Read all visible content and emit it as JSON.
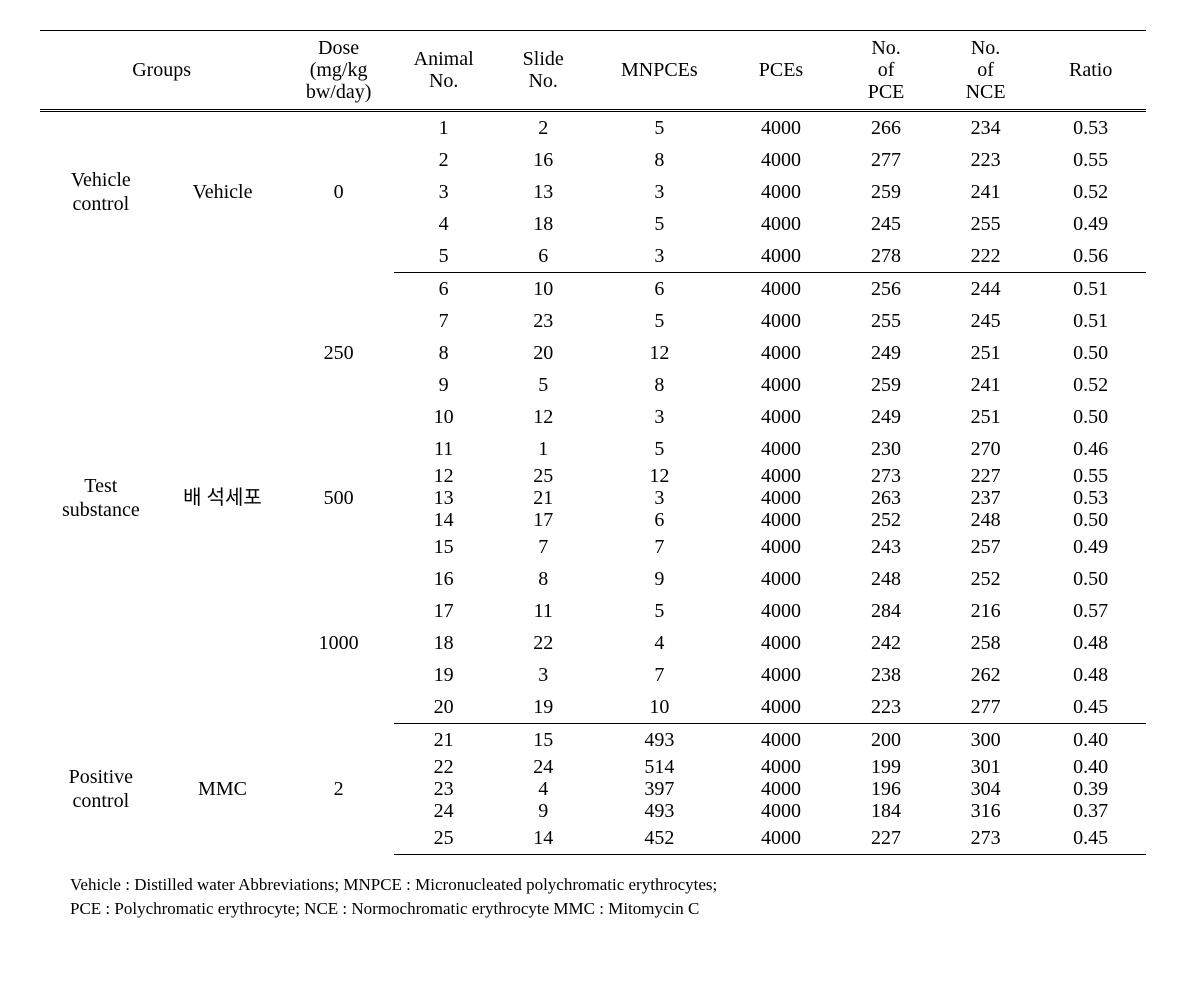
{
  "table": {
    "columns": {
      "groups": "Groups",
      "dose": "Dose\n(mg/kg\nbw/day)",
      "animal_no": "Animal\nNo.",
      "slide_no": "Slide\nNo.",
      "mnpces": "MNPCEs",
      "pces": "PCEs",
      "no_pce": "No.\nof\nPCE",
      "no_nce": "No.\nof\nNCE",
      "ratio": "Ratio"
    },
    "groups": [
      {
        "label": "Vehicle\ncontrol",
        "substance": "Vehicle",
        "doses": [
          {
            "dose": "0",
            "rows": [
              {
                "animal": "1",
                "slide": "2",
                "mnpces": "5",
                "pces": "4000",
                "no_pce": "266",
                "no_nce": "234",
                "ratio": "0.53"
              },
              {
                "animal": "2",
                "slide": "16",
                "mnpces": "8",
                "pces": "4000",
                "no_pce": "277",
                "no_nce": "223",
                "ratio": "0.55"
              },
              {
                "animal": "3",
                "slide": "13",
                "mnpces": "3",
                "pces": "4000",
                "no_pce": "259",
                "no_nce": "241",
                "ratio": "0.52"
              },
              {
                "animal": "4",
                "slide": "18",
                "mnpces": "5",
                "pces": "4000",
                "no_pce": "245",
                "no_nce": "255",
                "ratio": "0.49"
              },
              {
                "animal": "5",
                "slide": "6",
                "mnpces": "3",
                "pces": "4000",
                "no_pce": "278",
                "no_nce": "222",
                "ratio": "0.56"
              }
            ]
          }
        ]
      },
      {
        "label": "Test\nsubstance",
        "substance": "배 석세포",
        "doses": [
          {
            "dose": "250",
            "rows": [
              {
                "animal": "6",
                "slide": "10",
                "mnpces": "6",
                "pces": "4000",
                "no_pce": "256",
                "no_nce": "244",
                "ratio": "0.51"
              },
              {
                "animal": "7",
                "slide": "23",
                "mnpces": "5",
                "pces": "4000",
                "no_pce": "255",
                "no_nce": "245",
                "ratio": "0.51"
              },
              {
                "animal": "8",
                "slide": "20",
                "mnpces": "12",
                "pces": "4000",
                "no_pce": "249",
                "no_nce": "251",
                "ratio": "0.50"
              },
              {
                "animal": "9",
                "slide": "5",
                "mnpces": "8",
                "pces": "4000",
                "no_pce": "259",
                "no_nce": "241",
                "ratio": "0.52"
              },
              {
                "animal": "10",
                "slide": "12",
                "mnpces": "3",
                "pces": "4000",
                "no_pce": "249",
                "no_nce": "251",
                "ratio": "0.50"
              }
            ]
          },
          {
            "dose": "500",
            "rows": [
              {
                "animal": "11",
                "slide": "1",
                "mnpces": "5",
                "pces": "4000",
                "no_pce": "230",
                "no_nce": "270",
                "ratio": "0.46"
              },
              {
                "animal": "12",
                "slide": "25",
                "mnpces": "12",
                "pces": "4000",
                "no_pce": "273",
                "no_nce": "227",
                "ratio": "0.55",
                "compact": true
              },
              {
                "animal": "13",
                "slide": "21",
                "mnpces": "3",
                "pces": "4000",
                "no_pce": "263",
                "no_nce": "237",
                "ratio": "0.53",
                "compact": true
              },
              {
                "animal": "14",
                "slide": "17",
                "mnpces": "6",
                "pces": "4000",
                "no_pce": "252",
                "no_nce": "248",
                "ratio": "0.50",
                "compact": true
              },
              {
                "animal": "15",
                "slide": "7",
                "mnpces": "7",
                "pces": "4000",
                "no_pce": "243",
                "no_nce": "257",
                "ratio": "0.49"
              }
            ]
          },
          {
            "dose": "1000",
            "rows": [
              {
                "animal": "16",
                "slide": "8",
                "mnpces": "9",
                "pces": "4000",
                "no_pce": "248",
                "no_nce": "252",
                "ratio": "0.50"
              },
              {
                "animal": "17",
                "slide": "11",
                "mnpces": "5",
                "pces": "4000",
                "no_pce": "284",
                "no_nce": "216",
                "ratio": "0.57"
              },
              {
                "animal": "18",
                "slide": "22",
                "mnpces": "4",
                "pces": "4000",
                "no_pce": "242",
                "no_nce": "258",
                "ratio": "0.48"
              },
              {
                "animal": "19",
                "slide": "3",
                "mnpces": "7",
                "pces": "4000",
                "no_pce": "238",
                "no_nce": "262",
                "ratio": "0.48"
              },
              {
                "animal": "20",
                "slide": "19",
                "mnpces": "10",
                "pces": "4000",
                "no_pce": "223",
                "no_nce": "277",
                "ratio": "0.45"
              }
            ]
          }
        ]
      },
      {
        "label": "Positive\ncontrol",
        "substance": "MMC",
        "doses": [
          {
            "dose": "2",
            "rows": [
              {
                "animal": "21",
                "slide": "15",
                "mnpces": "493",
                "pces": "4000",
                "no_pce": "200",
                "no_nce": "300",
                "ratio": "0.40"
              },
              {
                "animal": "22",
                "slide": "24",
                "mnpces": "514",
                "pces": "4000",
                "no_pce": "199",
                "no_nce": "301",
                "ratio": "0.40",
                "compact": true
              },
              {
                "animal": "23",
                "slide": "4",
                "mnpces": "397",
                "pces": "4000",
                "no_pce": "196",
                "no_nce": "304",
                "ratio": "0.39",
                "compact": true
              },
              {
                "animal": "24",
                "slide": "9",
                "mnpces": "493",
                "pces": "4000",
                "no_pce": "184",
                "no_nce": "316",
                "ratio": "0.37",
                "compact": true
              },
              {
                "animal": "25",
                "slide": "14",
                "mnpces": "452",
                "pces": "4000",
                "no_pce": "227",
                "no_nce": "273",
                "ratio": "0.45"
              }
            ]
          }
        ]
      }
    ]
  },
  "footnote": {
    "line1": "Vehicle : Distilled water Abbreviations; MNPCE : Micronucleated polychromatic erythrocytes;",
    "line2": "PCE : Polychromatic erythrocyte; NCE : Normochromatic erythrocyte MMC : Mitomycin C"
  }
}
